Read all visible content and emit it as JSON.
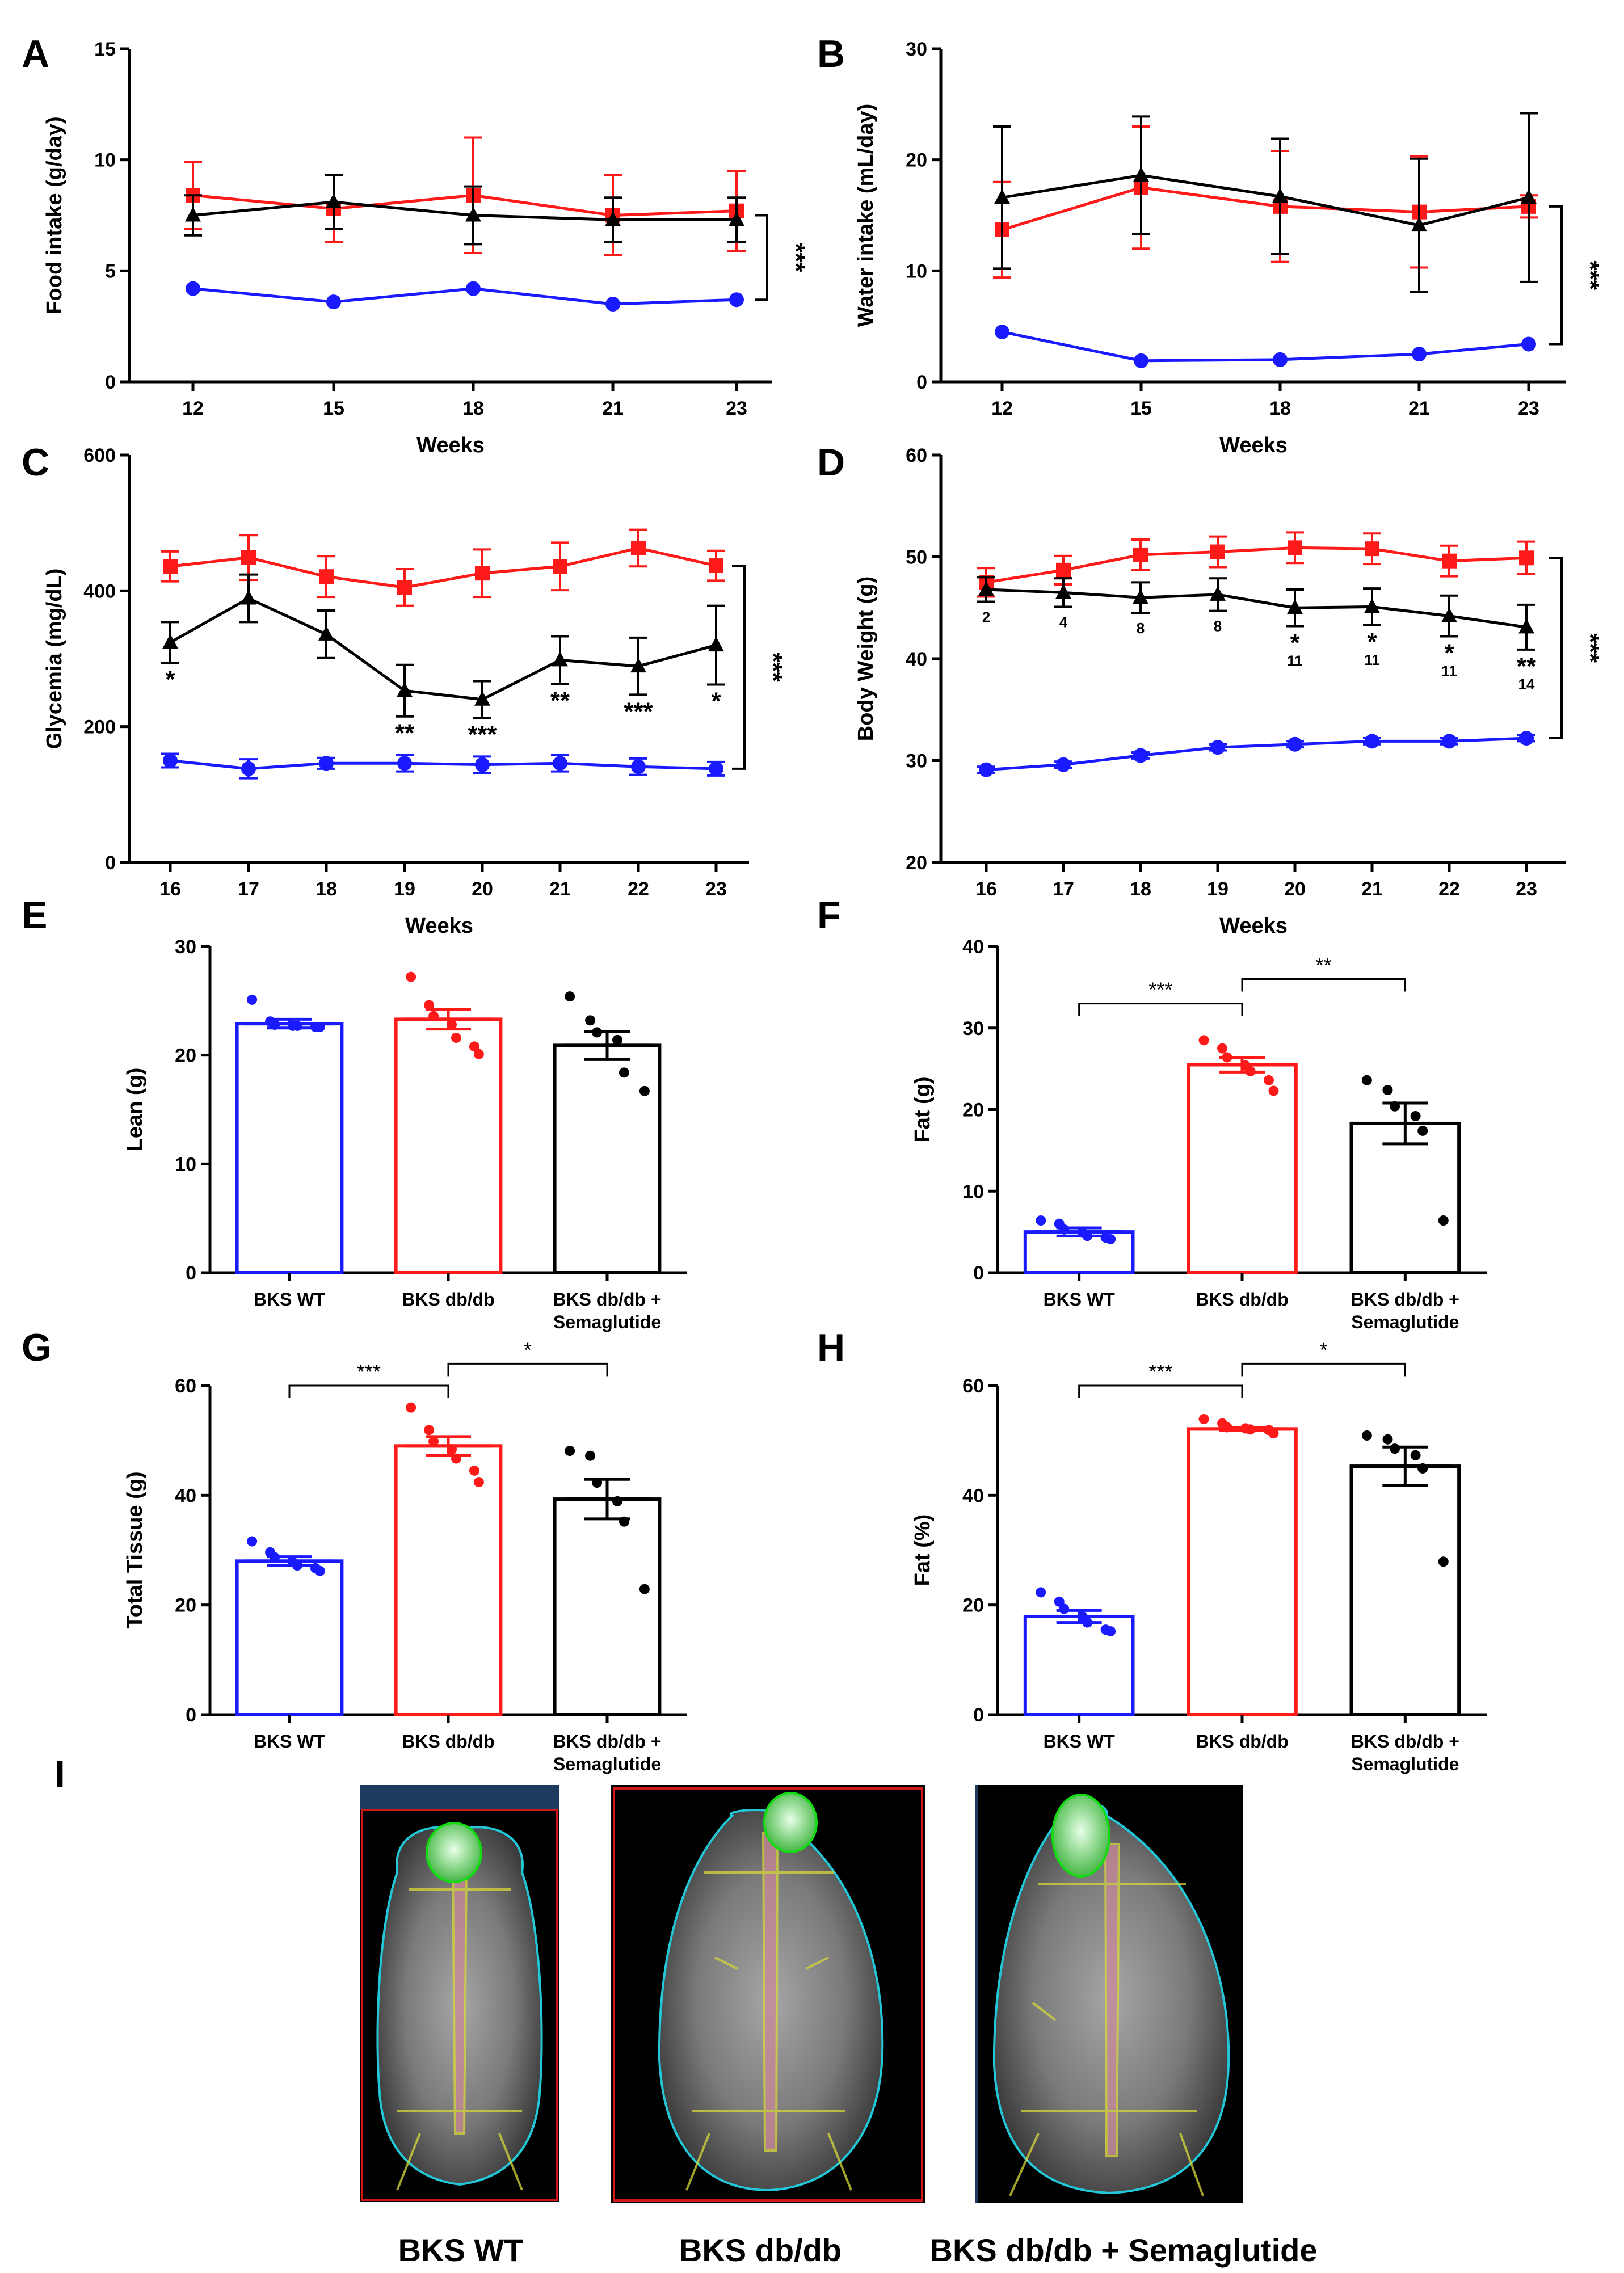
{
  "figure": {
    "panel_letters": [
      "A",
      "B",
      "C",
      "D",
      "E",
      "F",
      "G",
      "H",
      "I"
    ],
    "colors": {
      "wt": "#1a1aff",
      "dbdb": "#ff1a1a",
      "sema": "#000000"
    },
    "group_labels": [
      "BKS WT",
      "BKS db/db",
      "BKS db/db +",
      "Semaglutide"
    ],
    "image_captions": [
      "BKS WT",
      "BKS db/db",
      "BKS db/db + Semaglutide"
    ]
  },
  "chart_data": [
    {
      "id": "A",
      "type": "line",
      "xlabel": "Weeks",
      "ylabel": "Food intake (g/day)",
      "ylim": [
        0,
        15
      ],
      "yticks": [
        0,
        5,
        10,
        15
      ],
      "x": [
        12,
        15,
        18,
        21,
        23
      ],
      "series": [
        {
          "name": "BKS WT",
          "color": "#1a1aff",
          "marker": "circle",
          "values": [
            4.2,
            3.6,
            4.2,
            3.5,
            3.7
          ],
          "err": [
            0,
            0,
            0,
            0,
            0
          ]
        },
        {
          "name": "BKS db/db",
          "color": "#ff1a1a",
          "marker": "square",
          "values": [
            8.4,
            7.8,
            8.4,
            7.5,
            7.7
          ],
          "err": [
            1.5,
            1.5,
            2.6,
            1.8,
            1.8
          ]
        },
        {
          "name": "BKS db/db + Semaglutide",
          "color": "#000000",
          "marker": "triangle",
          "values": [
            7.5,
            8.1,
            7.5,
            7.3,
            7.3
          ],
          "err": [
            0.9,
            1.2,
            1.3,
            1.0,
            1.0
          ]
        }
      ],
      "bracket": {
        "text": "***",
        "from": 7.5,
        "to": 3.7
      }
    },
    {
      "id": "B",
      "type": "line",
      "xlabel": "Weeks",
      "ylabel": "Water intake (mL/day)",
      "ylim": [
        0,
        30
      ],
      "yticks": [
        0,
        10,
        20,
        30
      ],
      "x": [
        12,
        15,
        18,
        21,
        23
      ],
      "series": [
        {
          "name": "BKS WT",
          "color": "#1a1aff",
          "marker": "circle",
          "values": [
            4.5,
            1.9,
            2.0,
            2.5,
            3.4
          ],
          "err": [
            0,
            0,
            0,
            0,
            0
          ]
        },
        {
          "name": "BKS db/db",
          "color": "#ff1a1a",
          "marker": "square",
          "values": [
            13.7,
            17.5,
            15.8,
            15.3,
            15.8
          ],
          "err": [
            4.3,
            5.5,
            5.0,
            5.0,
            1.0
          ]
        },
        {
          "name": "BKS db/db + Semaglutide",
          "color": "#000000",
          "marker": "triangle",
          "values": [
            16.6,
            18.6,
            16.7,
            14.1,
            16.6
          ],
          "err": [
            6.4,
            5.3,
            5.2,
            6.0,
            7.6
          ]
        }
      ],
      "bracket": {
        "text": "***",
        "from": 15.8,
        "to": 3.4
      }
    },
    {
      "id": "C",
      "type": "line",
      "xlabel": "Weeks",
      "ylabel": "Glycemia (mg/dL)",
      "ylim": [
        0,
        600
      ],
      "yticks": [
        0,
        200,
        400,
        600
      ],
      "x": [
        16,
        17,
        18,
        19,
        20,
        21,
        22,
        23
      ],
      "series": [
        {
          "name": "BKS WT",
          "color": "#1a1aff",
          "marker": "circle",
          "values": [
            150,
            138,
            146,
            146,
            144,
            146,
            141,
            138
          ],
          "err": [
            10,
            14,
            8,
            12,
            12,
            12,
            12,
            10
          ]
        },
        {
          "name": "BKS db/db",
          "color": "#ff1a1a",
          "marker": "square",
          "values": [
            436,
            449,
            421,
            405,
            426,
            436,
            463,
            437
          ],
          "err": [
            22,
            33,
            30,
            27,
            35,
            35,
            27,
            22
          ]
        },
        {
          "name": "BKS db/db + Semaglutide",
          "color": "#000000",
          "marker": "triangle",
          "values": [
            324,
            389,
            336,
            253,
            240,
            298,
            289,
            320
          ],
          "err": [
            30,
            35,
            35,
            38,
            27,
            35,
            42,
            58
          ]
        }
      ],
      "annotations": [
        "*",
        "",
        "",
        "**",
        "***",
        "**",
        "***",
        "*"
      ],
      "bracket": {
        "text": "***",
        "from": 437,
        "to": 138
      }
    },
    {
      "id": "D",
      "type": "line",
      "xlabel": "Weeks",
      "ylabel": "Body Weight (g)",
      "ylim": [
        20,
        60
      ],
      "yticks": [
        20,
        30,
        40,
        50,
        60
      ],
      "x": [
        16,
        17,
        18,
        19,
        20,
        21,
        22,
        23
      ],
      "series": [
        {
          "name": "BKS WT",
          "color": "#1a1aff",
          "marker": "circle",
          "values": [
            29.1,
            29.6,
            30.5,
            31.3,
            31.6,
            31.9,
            31.9,
            32.2
          ],
          "err": [
            0.3,
            0.3,
            0.3,
            0.3,
            0.3,
            0.3,
            0.3,
            0.3
          ]
        },
        {
          "name": "BKS db/db",
          "color": "#ff1a1a",
          "marker": "square",
          "values": [
            47.5,
            48.7,
            50.2,
            50.5,
            50.9,
            50.8,
            49.6,
            49.9
          ],
          "err": [
            1.4,
            1.4,
            1.5,
            1.5,
            1.5,
            1.5,
            1.5,
            1.6
          ]
        },
        {
          "name": "BKS db/db + Semaglutide",
          "color": "#000000",
          "marker": "triangle",
          "values": [
            46.8,
            46.5,
            46.0,
            46.3,
            45.0,
            45.1,
            44.2,
            43.1
          ],
          "err": [
            1.2,
            1.4,
            1.5,
            1.6,
            1.8,
            1.8,
            2.0,
            2.2
          ]
        }
      ],
      "annotations": [
        "",
        "",
        "",
        "",
        "*",
        "*",
        "*",
        "**"
      ],
      "counts": [
        "2",
        "4",
        "8",
        "8",
        "11",
        "11",
        "11",
        "14"
      ],
      "bracket": {
        "text": "***",
        "from": 49.9,
        "to": 32.2
      }
    },
    {
      "id": "E",
      "type": "bar",
      "ylabel": "Lean (g)",
      "ylim": [
        0,
        30
      ],
      "yticks": [
        0,
        10,
        20,
        30
      ],
      "categories": [
        "BKS WT",
        "BKS db/db",
        "BKS db/db + Semaglutide"
      ],
      "values": [
        22.9,
        23.3,
        20.9
      ],
      "sem": [
        0.4,
        0.9,
        1.3
      ],
      "points": [
        [
          25.1,
          23.1,
          22.8,
          22.7,
          22.7,
          22.6,
          22.6
        ],
        [
          27.2,
          24.6,
          23.6,
          22.8,
          21.6,
          20.8,
          20.1
        ],
        [
          25.4,
          23.2,
          22.1,
          21.4,
          18.4,
          16.7
        ]
      ],
      "comparisons": []
    },
    {
      "id": "F",
      "type": "bar",
      "ylabel": "Fat (g)",
      "ylim": [
        0,
        40
      ],
      "yticks": [
        0,
        10,
        20,
        30,
        40
      ],
      "categories": [
        "BKS WT",
        "BKS db/db",
        "BKS db/db + Semaglutide"
      ],
      "values": [
        5.0,
        25.5,
        18.3
      ],
      "sem": [
        0.5,
        0.9,
        2.5
      ],
      "points": [
        [
          6.4,
          6.0,
          5.3,
          4.9,
          4.5,
          4.3,
          4.1
        ],
        [
          28.5,
          27.5,
          26.4,
          25.4,
          24.7,
          23.6,
          22.3
        ],
        [
          23.6,
          22.4,
          20.4,
          19.2,
          17.4,
          6.4
        ]
      ],
      "comparisons": [
        {
          "from": 0,
          "to": 1,
          "text": "***",
          "level": 33
        },
        {
          "from": 1,
          "to": 2,
          "text": "**",
          "level": 36
        }
      ]
    },
    {
      "id": "G",
      "type": "bar",
      "ylabel": "Total Tissue (g)",
      "ylim": [
        0,
        60
      ],
      "yticks": [
        0,
        20,
        40,
        60
      ],
      "categories": [
        "BKS WT",
        "BKS db/db",
        "BKS db/db + Semaglutide"
      ],
      "values": [
        28.0,
        49.0,
        39.3
      ],
      "sem": [
        0.8,
        1.7,
        3.6
      ],
      "points": [
        [
          31.6,
          29.6,
          28.7,
          27.8,
          27.2,
          26.7,
          26.2
        ],
        [
          56.0,
          51.9,
          49.8,
          48.4,
          46.7,
          44.5,
          42.4
        ],
        [
          48.1,
          47.2,
          42.3,
          38.9,
          35.2,
          22.9
        ]
      ],
      "comparisons": [
        {
          "from": 0,
          "to": 1,
          "text": "***",
          "level": 60
        },
        {
          "from": 1,
          "to": 2,
          "text": "*",
          "level": 64
        }
      ]
    },
    {
      "id": "H",
      "type": "bar",
      "ylabel": "Fat (%)",
      "ylim": [
        0,
        60
      ],
      "yticks": [
        0,
        20,
        40,
        60
      ],
      "categories": [
        "BKS WT",
        "BKS db/db",
        "BKS db/db + Semaglutide"
      ],
      "values": [
        17.9,
        52.1,
        45.3
      ],
      "sem": [
        1.1,
        0.3,
        3.5
      ],
      "points": [
        [
          22.3,
          20.6,
          19.3,
          17.9,
          16.8,
          15.5,
          15.2
        ],
        [
          53.9,
          53.1,
          52.4,
          52.2,
          52.0,
          51.9,
          51.3
        ],
        [
          50.9,
          50.2,
          48.5,
          47.3,
          44.9,
          27.9
        ]
      ],
      "comparisons": [
        {
          "from": 0,
          "to": 1,
          "text": "***",
          "level": 60
        },
        {
          "from": 1,
          "to": 2,
          "text": "*",
          "level": 64
        }
      ]
    }
  ]
}
